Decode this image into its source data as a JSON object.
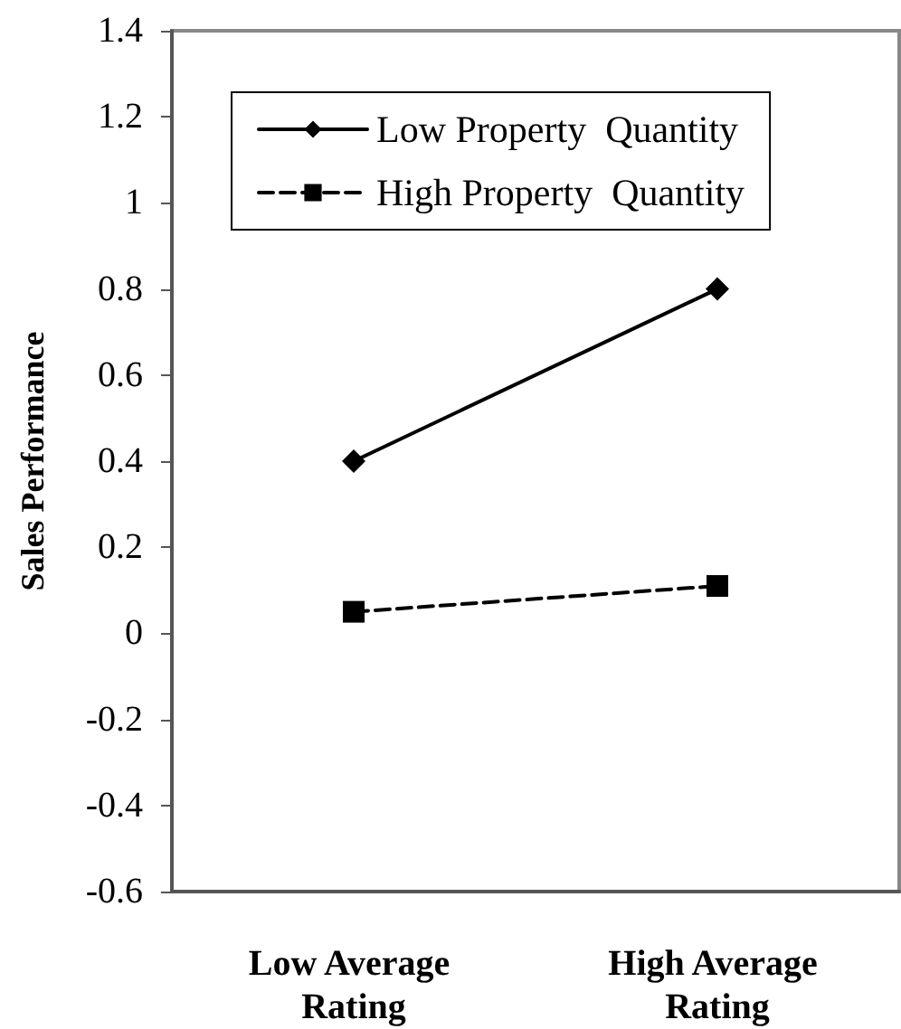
{
  "chart_data": {
    "type": "line",
    "ylabel": "Sales Performance",
    "categories": [
      "Low Average Rating",
      "High Average Rating"
    ],
    "series": [
      {
        "name": "Low Property  Quantity",
        "color": "#000000",
        "values": [
          0.4,
          0.8
        ],
        "marker": "diamond",
        "line_style": "solid"
      },
      {
        "name": "High Property  Quantity",
        "color": "#000000",
        "values": [
          0.05,
          0.11
        ],
        "marker": "square",
        "line_style": "dashed"
      }
    ],
    "ylim": [
      -0.6,
      1.4
    ],
    "yticks": [
      -0.6,
      -0.4,
      -0.2,
      0,
      0.2,
      0.4,
      0.6,
      0.8,
      1,
      1.2,
      1.4
    ],
    "grid": false,
    "legend": "top"
  }
}
